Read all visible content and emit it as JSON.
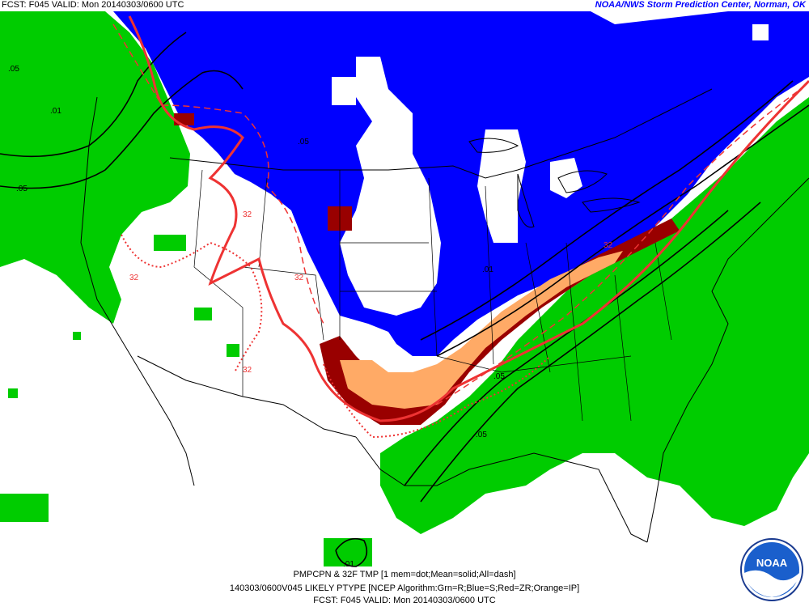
{
  "header": {
    "left": "FCST: F045  VALID: Mon  20140303/0600 UTC",
    "right": "NOAA/NWS Storm Prediction Center, Norman, OK"
  },
  "footer": {
    "line1": "PMPCPN & 32F TMP [1 mem=dot;Mean=solid;All=dash]",
    "line2": "140303/0600V045 LIKELY PTYPE [NCEP Algorithm:Grn=R;Blue=S;Red=ZR;Orange=IP]",
    "line3": "FCST: F045  VALID: Mon  20140303/0600 UTC"
  },
  "contour_labels": {
    "prob_05": ".05",
    "prob_01": ".01",
    "temp_32": "32"
  },
  "logo": {
    "text": "NOAA"
  },
  "colors": {
    "rain": "#00cc00",
    "snow": "#0000ff",
    "freezing_rain": "#990000",
    "ice_pellets": "#ffaa66",
    "temp_contour": "#ee3333",
    "prob_contour": "#000000",
    "header_right": "#0000ff"
  }
}
